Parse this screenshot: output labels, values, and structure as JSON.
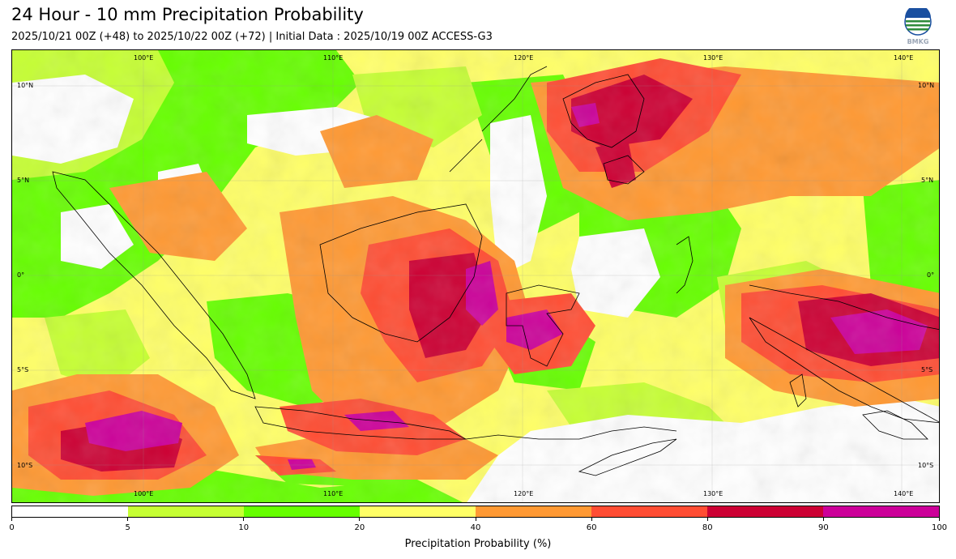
{
  "header": {
    "title": "24 Hour - 10 mm Precipitation Probability",
    "subtitle": "2025/10/21 00Z (+48) to 2025/10/22 00Z (+72) | Initial Data : 2025/10/19 00Z ACCESS-G3",
    "logo_text": "BMKG"
  },
  "map": {
    "lon_labels_top": [
      "100°E",
      "110°E",
      "120°E",
      "130°E",
      "140°E"
    ],
    "lon_labels_bottom": [
      "100°E",
      "110°E",
      "120°E",
      "130°E",
      "140°E"
    ],
    "lat_labels_left": [
      "10°N",
      "5°N",
      "0°",
      "5°S",
      "10°S"
    ],
    "lat_labels_right": [
      "10°N",
      "5°N",
      "0°",
      "5°S",
      "10°S"
    ]
  },
  "colorbar": {
    "title": "Precipitation Probability (%)",
    "ticks": [
      "0",
      "5",
      "10",
      "20",
      "40",
      "60",
      "80",
      "90",
      "100"
    ],
    "colors": [
      "#ffffff",
      "#c6ff33",
      "#66ff00",
      "#ffff66",
      "#ff9933",
      "#ff4d33",
      "#cc0033",
      "#cc0099"
    ]
  }
}
